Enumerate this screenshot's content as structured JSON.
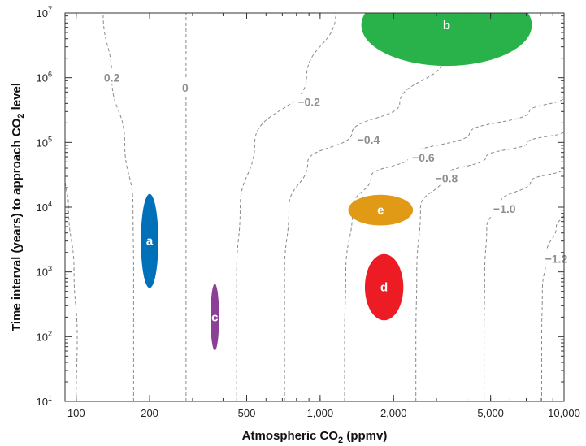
{
  "chart_data": {
    "type": "contour",
    "x_axis": {
      "label_parts": [
        "Atmospheric CO",
        "2",
        " (ppmv)"
      ],
      "scale": "log",
      "range": [
        90,
        10000
      ],
      "ticks": [
        {
          "value": 100,
          "label": "100"
        },
        {
          "value": 200,
          "label": "200"
        },
        {
          "value": 500,
          "label": "500"
        },
        {
          "value": 1000,
          "label": "1,000"
        },
        {
          "value": 2000,
          "label": "2,000"
        },
        {
          "value": 5000,
          "label": "5,000"
        },
        {
          "value": 10000,
          "label": "10,000"
        }
      ]
    },
    "y_axis": {
      "label_parts": [
        "Time interval (years) to approach CO",
        "2",
        " level"
      ],
      "scale": "log",
      "range": [
        10,
        10000000
      ],
      "ticks": [
        {
          "value": 10,
          "mant": "10",
          "exp": "1"
        },
        {
          "value": 100,
          "mant": "10",
          "exp": "2"
        },
        {
          "value": 1000,
          "mant": "10",
          "exp": "3"
        },
        {
          "value": 10000,
          "mant": "10",
          "exp": "4"
        },
        {
          "value": 100000,
          "mant": "10",
          "exp": "5"
        },
        {
          "value": 1000000,
          "mant": "10",
          "exp": "6"
        },
        {
          "value": 10000000,
          "mant": "10",
          "exp": "7"
        }
      ]
    },
    "contours": [
      {
        "label": "",
        "points": [
          [
            100,
            10
          ],
          [
            101,
            100
          ],
          [
            98,
            1000
          ],
          [
            93,
            10000
          ],
          [
            90,
            30000
          ]
        ]
      },
      {
        "label": "0.2",
        "label_at": [
          140,
          1000000
        ],
        "points": [
          [
            172,
            10
          ],
          [
            172,
            100
          ],
          [
            172,
            1000
          ],
          [
            171,
            10000
          ],
          [
            158,
            100000
          ],
          [
            140,
            1000000
          ],
          [
            129,
            10000000
          ]
        ]
      },
      {
        "label": "0",
        "label_at": [
          280,
          700000
        ],
        "points": [
          [
            282,
            10
          ],
          [
            282,
            100
          ],
          [
            282,
            1000
          ],
          [
            282,
            10000
          ],
          [
            282,
            100000
          ],
          [
            282,
            1000000
          ],
          [
            282,
            10000000
          ]
        ]
      },
      {
        "label": "−0.2",
        "label_at": [
          900,
          420000
        ],
        "points": [
          [
            455,
            10
          ],
          [
            455,
            100
          ],
          [
            455,
            1000
          ],
          [
            470,
            10000
          ],
          [
            540,
            100000
          ],
          [
            880,
            1000000
          ],
          [
            1160,
            10000000
          ]
        ]
      },
      {
        "label": "−0.4",
        "label_at": [
          1580,
          110000
        ],
        "points": [
          [
            715,
            10
          ],
          [
            715,
            100
          ],
          [
            715,
            1000
          ],
          [
            745,
            10000
          ],
          [
            890,
            50000
          ],
          [
            1350,
            140000
          ],
          [
            2120,
            400000
          ],
          [
            3200,
            2000000
          ]
        ]
      },
      {
        "label": "−0.6",
        "label_at": [
          2650,
          58000
        ],
        "points": [
          [
            1260,
            10
          ],
          [
            1260,
            100
          ],
          [
            1275,
            1000
          ],
          [
            1360,
            10000
          ],
          [
            1620,
            30000
          ],
          [
            2320,
            60000
          ],
          [
            4100,
            140000
          ],
          [
            7200,
            300000
          ],
          [
            10000,
            500000
          ]
        ]
      },
      {
        "label": "−0.8",
        "label_at": [
          3300,
          28000
        ],
        "points": [
          [
            2470,
            10
          ],
          [
            2470,
            100
          ],
          [
            2490,
            1000
          ],
          [
            2580,
            10000
          ],
          [
            3200,
            30000
          ],
          [
            4800,
            60000
          ],
          [
            7100,
            100000
          ],
          [
            10000,
            150000
          ]
        ]
      },
      {
        "label": "−1.0",
        "label_at": [
          5700,
          9500
        ],
        "points": [
          [
            4700,
            10
          ],
          [
            4700,
            100
          ],
          [
            4730,
            1000
          ],
          [
            4820,
            5000
          ],
          [
            5500,
            12000
          ],
          [
            7300,
            25000
          ],
          [
            10000,
            40000
          ]
        ]
      },
      {
        "label": "−1.2",
        "label_at": [
          9300,
          1600
        ],
        "points": [
          [
            8100,
            10
          ],
          [
            8100,
            100
          ],
          [
            8150,
            500
          ],
          [
            8500,
            2000
          ],
          [
            9300,
            5000
          ],
          [
            10000,
            8000
          ]
        ]
      }
    ],
    "regions": [
      {
        "label": "a",
        "x": 200,
        "y": 3000,
        "x_span": [
          184,
          217
        ],
        "y_span": [
          600,
          17000
        ],
        "color": "#0070b8"
      },
      {
        "label": "b",
        "x": 3300,
        "y": 6500000,
        "x_span": [
          1400,
          7000
        ],
        "y_span": [
          1100000,
          20000000
        ],
        "color": "#2ab24a"
      },
      {
        "label": "c",
        "x": 370,
        "y": 200,
        "x_span": [
          355,
          385
        ],
        "y_span": [
          45,
          480
        ],
        "color": "#8b3f97"
      },
      {
        "label": "d",
        "x": 1830,
        "y": 580,
        "x_span": [
          1530,
          2200
        ],
        "y_span": [
          180,
          1900
        ],
        "color": "#ed1c24"
      },
      {
        "label": "e",
        "x": 1770,
        "y": 9000,
        "x_span": [
          1330,
          2450
        ],
        "y_span": [
          5200,
          15500
        ],
        "color": "#e09a16"
      }
    ],
    "grid": false
  }
}
